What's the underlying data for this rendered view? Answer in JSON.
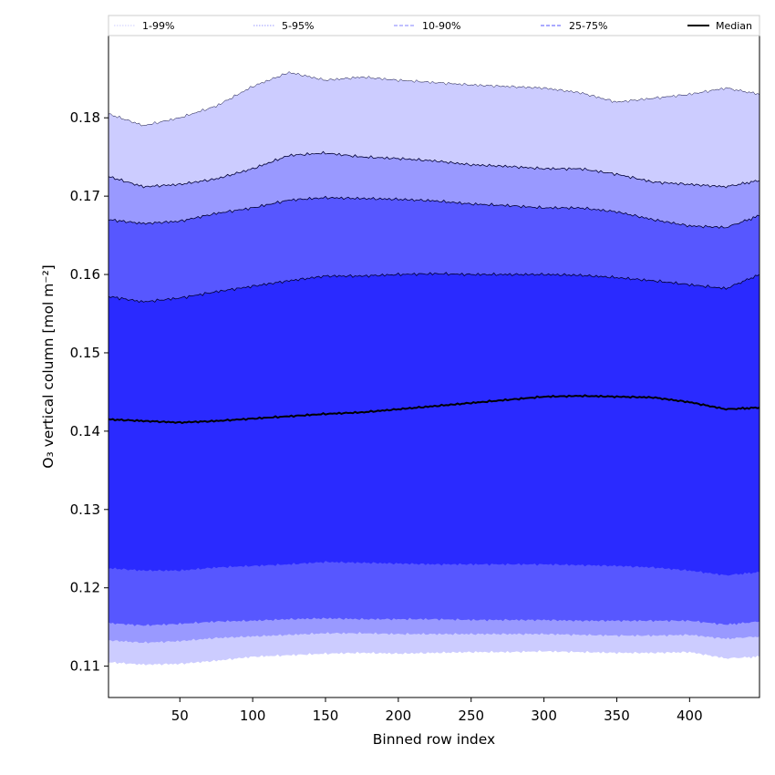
{
  "chart_data": {
    "type": "area",
    "xlabel": "Binned row index",
    "ylabel": "O₃ vertical column [mol m⁻²]",
    "xlim": [
      1,
      448
    ],
    "ylim": [
      0.106,
      0.1905
    ],
    "x_ticks": [
      50,
      100,
      150,
      200,
      250,
      300,
      350,
      400
    ],
    "y_ticks": [
      0.11,
      0.12,
      0.13,
      0.14,
      0.15,
      0.16,
      0.17,
      0.18
    ],
    "y_tick_labels": [
      "0.11",
      "0.12",
      "0.13",
      "0.14",
      "0.15",
      "0.16",
      "0.17",
      "0.18"
    ],
    "grid": false,
    "legend_position": "top",
    "x": [
      1,
      25,
      50,
      75,
      100,
      125,
      150,
      175,
      200,
      225,
      250,
      275,
      300,
      325,
      350,
      375,
      400,
      425,
      448
    ],
    "bands": [
      {
        "name": "1-99%",
        "color": "#ccccff",
        "lower": [
          0.1105,
          0.1102,
          0.1103,
          0.1107,
          0.1112,
          0.1114,
          0.1116,
          0.1117,
          0.1116,
          0.1117,
          0.1118,
          0.1118,
          0.1119,
          0.1118,
          0.1117,
          0.1117,
          0.1118,
          0.111,
          0.1112
        ],
        "upper": [
          0.1805,
          0.179,
          0.18,
          0.1815,
          0.184,
          0.1858,
          0.1848,
          0.1852,
          0.1848,
          0.1845,
          0.1842,
          0.184,
          0.1838,
          0.1832,
          0.182,
          0.1825,
          0.183,
          0.1838,
          0.183
        ]
      },
      {
        "name": "5-95%",
        "color": "#9999ff",
        "lower": [
          0.1133,
          0.113,
          0.1132,
          0.1136,
          0.1138,
          0.114,
          0.1142,
          0.1142,
          0.1141,
          0.1141,
          0.1141,
          0.1141,
          0.1141,
          0.114,
          0.1139,
          0.1139,
          0.114,
          0.1135,
          0.1138
        ],
        "upper": [
          0.1725,
          0.1712,
          0.1715,
          0.1722,
          0.1735,
          0.1752,
          0.1755,
          0.175,
          0.1748,
          0.1745,
          0.174,
          0.1738,
          0.1735,
          0.1735,
          0.1728,
          0.1718,
          0.1715,
          0.1712,
          0.172
        ]
      },
      {
        "name": "10-90%",
        "color": "#5757ff",
        "lower": [
          0.1155,
          0.1152,
          0.1154,
          0.1157,
          0.1158,
          0.116,
          0.1161,
          0.116,
          0.116,
          0.116,
          0.1159,
          0.1159,
          0.1159,
          0.1158,
          0.1158,
          0.1158,
          0.1158,
          0.1153,
          0.1157
        ],
        "upper": [
          0.167,
          0.1665,
          0.1668,
          0.1678,
          0.1685,
          0.1695,
          0.1698,
          0.1697,
          0.1696,
          0.1694,
          0.169,
          0.1688,
          0.1685,
          0.1685,
          0.168,
          0.167,
          0.1662,
          0.166,
          0.1675
        ]
      },
      {
        "name": "25-75%",
        "color": "#2a2aff",
        "lower": [
          0.1225,
          0.1222,
          0.1222,
          0.1226,
          0.1228,
          0.123,
          0.1233,
          0.1232,
          0.1231,
          0.123,
          0.123,
          0.123,
          0.123,
          0.1229,
          0.1228,
          0.1226,
          0.1222,
          0.1216,
          0.122
        ],
        "upper": [
          0.1572,
          0.1565,
          0.157,
          0.1578,
          0.1585,
          0.1592,
          0.1598,
          0.1598,
          0.16,
          0.1601,
          0.16,
          0.16,
          0.16,
          0.1599,
          0.1596,
          0.1592,
          0.1587,
          0.1582,
          0.16
        ]
      }
    ],
    "median": {
      "name": "Median",
      "color": "#000000",
      "values": [
        0.1415,
        0.1413,
        0.1411,
        0.1413,
        0.1416,
        0.1419,
        0.1422,
        0.1424,
        0.1428,
        0.1432,
        0.1436,
        0.144,
        0.1444,
        0.1445,
        0.1444,
        0.1443,
        0.1437,
        0.1428,
        0.143
      ]
    },
    "legend": [
      {
        "label": "1-99%",
        "color": "#ccccff",
        "style": "dotted"
      },
      {
        "label": "5-95%",
        "color": "#9999ff",
        "style": "dotted"
      },
      {
        "label": "10-90%",
        "color": "#8080ff",
        "style": "dashed"
      },
      {
        "label": "25-75%",
        "color": "#5555ff",
        "style": "dashed"
      },
      {
        "label": "Median",
        "color": "#000000",
        "style": "solid"
      }
    ]
  }
}
